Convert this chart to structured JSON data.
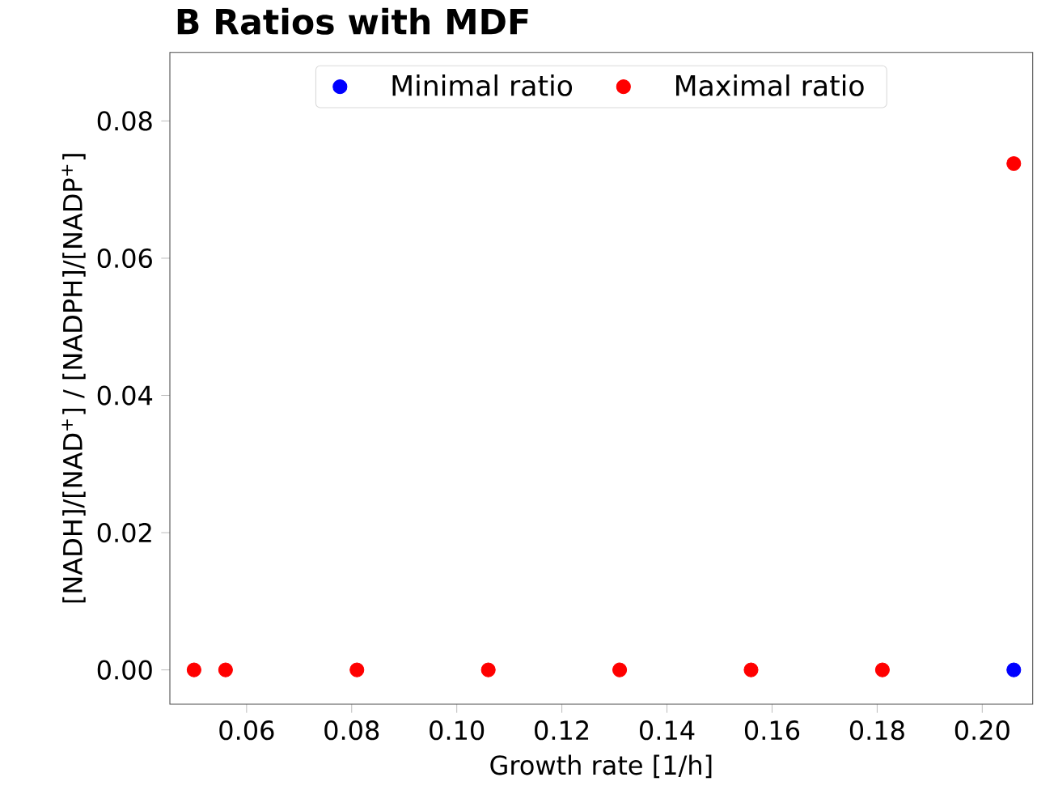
{
  "chart_data": {
    "type": "scatter",
    "title": "B Ratios with MDF",
    "xlabel": "Growth rate [1/h]",
    "ylabel": "[NADH]/[NAD$^{+}$] / [NADPH]/[NADP$^{+}$]",
    "x": [
      0.05,
      0.056,
      0.081,
      0.106,
      0.131,
      0.156,
      0.181,
      0.206
    ],
    "series": [
      {
        "name": "Minimal ratio",
        "color": "#0000ff",
        "values": [
          null,
          null,
          null,
          null,
          null,
          null,
          null,
          0
        ]
      },
      {
        "name": "Maximal ratio",
        "color": "#ff0000",
        "values": [
          0,
          0,
          0,
          0,
          0,
          0,
          0,
          0.0738
        ]
      }
    ],
    "xlim": [
      0.0454,
      0.2096
    ],
    "ylim": [
      -0.005,
      0.09
    ],
    "xticks": [
      0.06,
      0.08,
      {
        "value": 0.1,
        "label": "0.10"
      },
      0.12,
      0.14,
      0.16,
      0.18,
      {
        "value": 0.2,
        "label": "0.20"
      }
    ],
    "yticks": [
      {
        "value": 0,
        "label": "0.00"
      },
      0.02,
      0.04,
      0.06,
      0.08
    ],
    "legend": "top",
    "marker": "circle",
    "grid": false
  }
}
